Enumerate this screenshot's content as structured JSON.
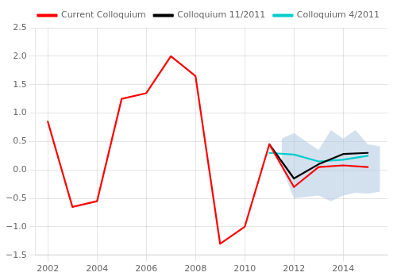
{
  "chart_data": {
    "type": "line",
    "series": [
      {
        "name": "Current Colloquium",
        "color": "#ff0000",
        "x": [
          2002,
          2003,
          2004,
          2005,
          2006,
          2007,
          2008,
          2009,
          2010,
          2011,
          2012,
          2013,
          2014,
          2015
        ],
        "values": [
          0.85,
          -0.65,
          -0.55,
          1.25,
          1.35,
          2.0,
          1.65,
          -1.3,
          -1.0,
          0.45,
          -0.3,
          0.05,
          0.08,
          0.05
        ]
      },
      {
        "name": "Colloquium 11/2011",
        "color": "#000000",
        "x": [
          2011,
          2012,
          2013,
          2014,
          2015
        ],
        "values": [
          0.45,
          -0.15,
          0.1,
          0.28,
          0.3
        ]
      },
      {
        "name": "Colloquium 4/2011",
        "color": "#00cccc",
        "x": [
          2011,
          2012,
          2013,
          2014,
          2015
        ],
        "values": [
          0.3,
          0.27,
          0.15,
          0.18,
          0.25
        ]
      }
    ],
    "band": {
      "color": "#afc8e0",
      "x": [
        2011.5,
        2012,
        2013,
        2013.5,
        2014,
        2014.5,
        2015,
        2015.5
      ],
      "upper": [
        0.55,
        0.65,
        0.35,
        0.7,
        0.55,
        0.7,
        0.45,
        0.42
      ],
      "lower": [
        0.05,
        -0.5,
        -0.45,
        -0.55,
        -0.45,
        -0.4,
        -0.42,
        -0.38
      ]
    },
    "xlim": [
      2001.5,
      2015.8
    ],
    "xticks": [
      2002,
      2004,
      2006,
      2008,
      2010,
      2012,
      2014
    ],
    "ylim": [
      -1.5,
      2.5
    ],
    "yticks": [
      {
        "value": -1.5,
        "label": "−1.5"
      },
      {
        "value": -1.0,
        "label": "−1.0"
      },
      {
        "value": -0.5,
        "label": "−0.5"
      },
      {
        "value": 0.0,
        "label": "0.0"
      },
      0.5,
      {
        "value": 1.0,
        "label": "1.0"
      },
      1.5,
      {
        "value": 2.0,
        "label": "2.0"
      },
      2.5
    ],
    "grid": true,
    "legend": "upper right"
  }
}
